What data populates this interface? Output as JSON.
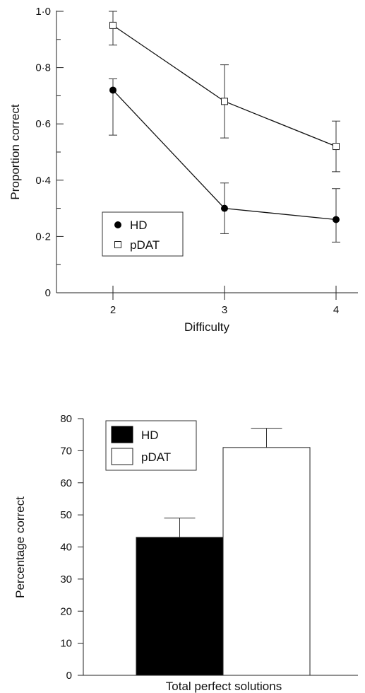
{
  "chart_data": [
    {
      "type": "line",
      "xlabel": "Difficulty",
      "ylabel": "Proportion correct",
      "x": [
        2,
        3,
        4
      ],
      "x_tick_labels": [
        "2",
        "3",
        "4"
      ],
      "ylim": [
        0,
        1.0
      ],
      "y_tick_labels": [
        "0",
        "0·2",
        "0·4",
        "0·6",
        "0·8",
        "1·0"
      ],
      "y_tick_values": [
        0,
        0.2,
        0.4,
        0.6,
        0.8,
        1.0
      ],
      "legend": "left",
      "series": [
        {
          "name": "HD",
          "marker": "filled-circle",
          "values": [
            0.72,
            0.3,
            0.26
          ],
          "err_low": [
            0.56,
            0.21,
            0.18
          ],
          "err_high": [
            0.76,
            0.39,
            0.37
          ]
        },
        {
          "name": "pDAT",
          "marker": "open-square",
          "values": [
            0.95,
            0.68,
            0.52
          ],
          "err_low": [
            0.88,
            0.55,
            0.43
          ],
          "err_high": [
            1.0,
            0.81,
            0.61
          ]
        }
      ]
    },
    {
      "type": "bar",
      "categories": [
        "Total perfect solutions"
      ],
      "xlabel": "Total perfect solutions",
      "ylabel": "Percentage correct",
      "ylim": [
        0,
        80
      ],
      "y_tick_labels": [
        "0",
        "10",
        "20",
        "30",
        "40",
        "50",
        "60",
        "70",
        "80"
      ],
      "y_tick_values": [
        0,
        10,
        20,
        30,
        40,
        50,
        60,
        70,
        80
      ],
      "legend": "top-left",
      "series": [
        {
          "name": "HD",
          "fill": "#000000",
          "values": [
            43
          ],
          "err_high": [
            49
          ]
        },
        {
          "name": "pDAT",
          "fill": "#ffffff",
          "values": [
            71
          ],
          "err_high": [
            77
          ]
        }
      ]
    }
  ]
}
